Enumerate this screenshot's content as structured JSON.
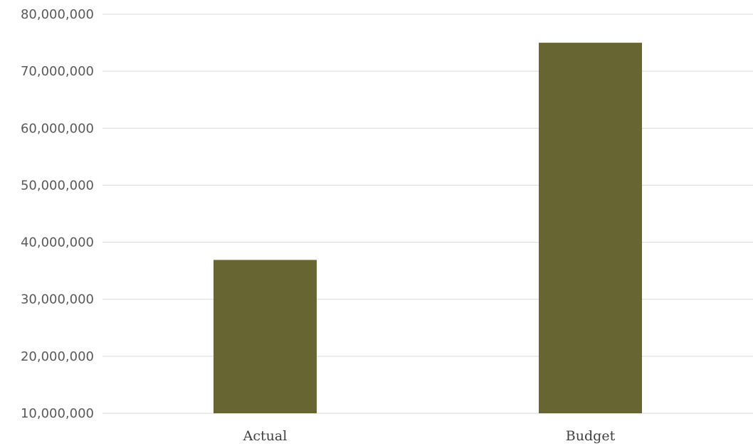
{
  "chart_data": {
    "type": "bar",
    "categories": [
      "Actual",
      "Budget"
    ],
    "values": [
      36900000,
      75000000
    ],
    "y_ticks": [
      "10,000,000",
      "20,000,000",
      "30,000,000",
      "40,000,000",
      "50,000,000",
      "60,000,000",
      "70,000,000",
      "80,000,000"
    ],
    "ylim": [
      10000000,
      80000000
    ],
    "title": "",
    "xlabel": "",
    "ylabel": "",
    "grid": "horizontal",
    "legend": "none",
    "bar_color": "#676532",
    "grid_color": "#d9d9d9"
  }
}
